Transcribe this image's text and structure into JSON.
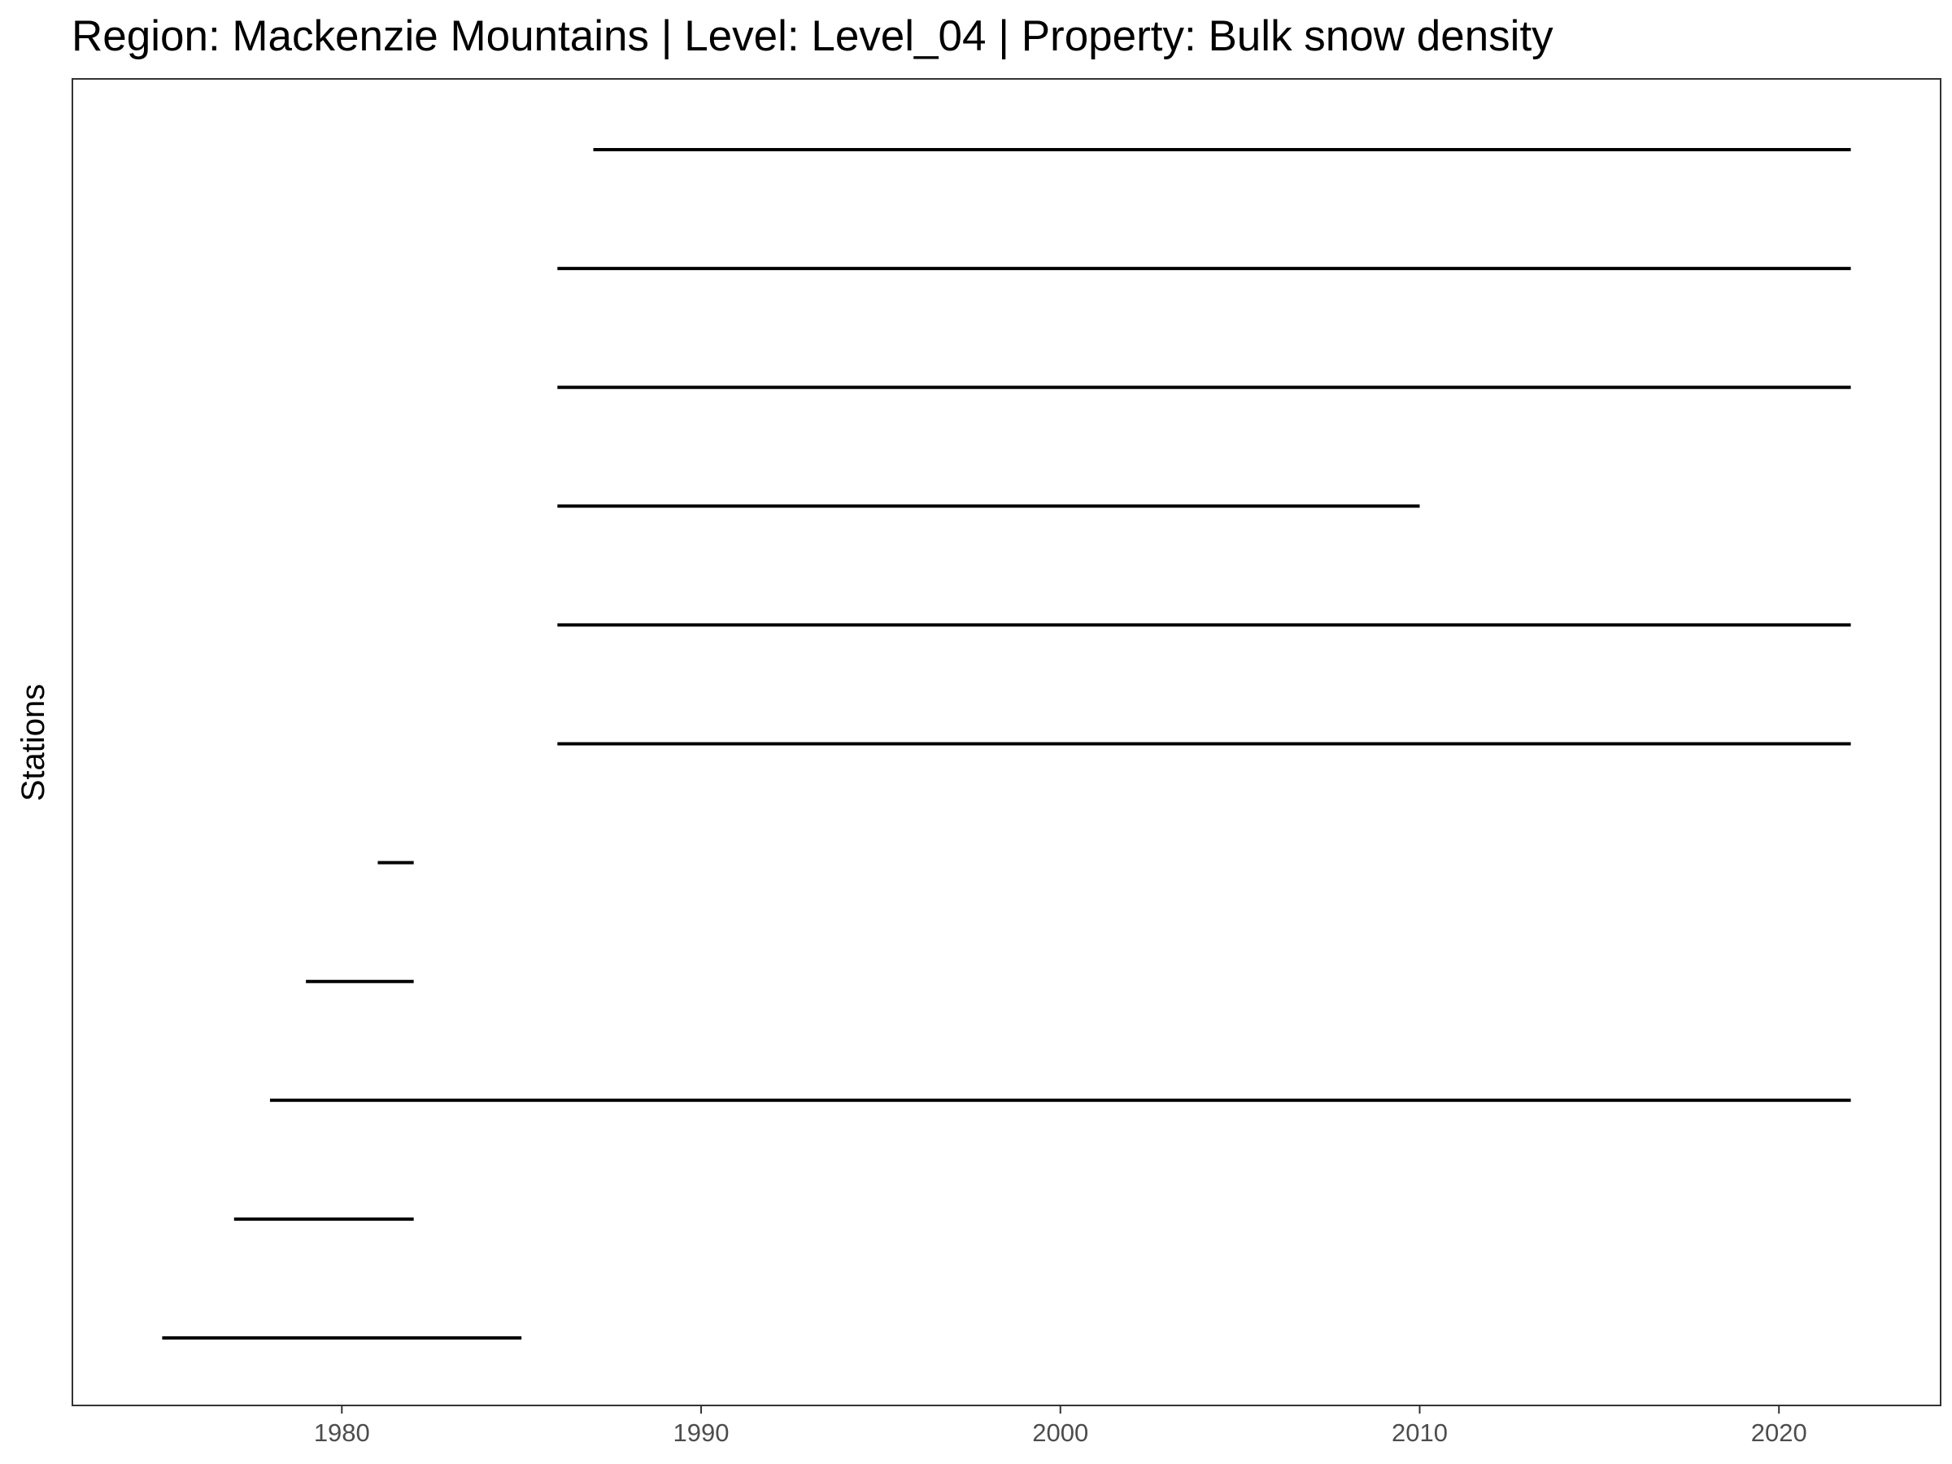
{
  "chart_data": {
    "type": "line",
    "title": "Region: Mackenzie Mountains | Level: Level_04 | Property: Bulk snow density",
    "xlabel": "",
    "ylabel": "Stations",
    "xlim": [
      1972.5,
      2024.5
    ],
    "x_ticks": [
      1980,
      1990,
      2000,
      2010,
      2020
    ],
    "x_tick_labels": [
      "1980",
      "1990",
      "2000",
      "2010",
      "2020"
    ],
    "grid": false,
    "legend": "none",
    "series": [
      {
        "start": 1987,
        "end": 2022
      },
      {
        "start": 1986,
        "end": 2022
      },
      {
        "start": 1986,
        "end": 2022
      },
      {
        "start": 1986,
        "end": 2010
      },
      {
        "start": 1986,
        "end": 2022
      },
      {
        "start": 1986,
        "end": 2022
      },
      {
        "start": 1981,
        "end": 1982
      },
      {
        "start": 1979,
        "end": 1982
      },
      {
        "start": 1978,
        "end": 2022
      },
      {
        "start": 1977,
        "end": 1982
      },
      {
        "start": 1975,
        "end": 1985
      }
    ],
    "line_color": "#000000"
  }
}
